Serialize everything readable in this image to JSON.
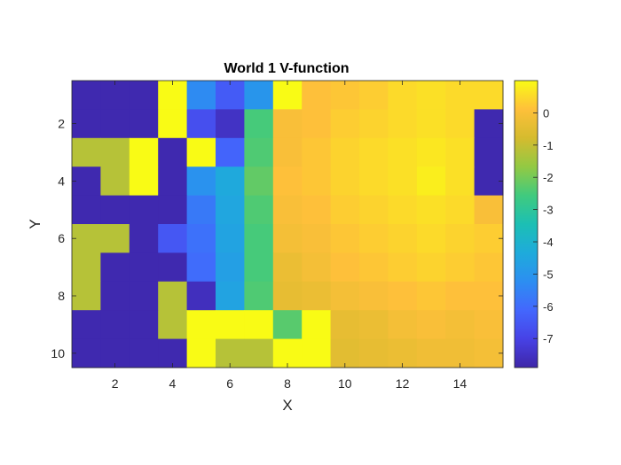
{
  "chart_data": {
    "type": "heatmap",
    "title": "World 1 V-function",
    "xlabel": "X",
    "ylabel": "Y",
    "x_ticks": [
      2,
      4,
      6,
      8,
      10,
      12,
      14
    ],
    "y_ticks": [
      2,
      4,
      6,
      8,
      10
    ],
    "x_range": [
      0.5,
      15.5
    ],
    "y_range": [
      0.5,
      10.5
    ],
    "y_direction": "reverse",
    "colormap": "parula",
    "color_limits": [
      -7.9,
      1.0
    ],
    "colorbar_ticks": [
      0,
      -1,
      -2,
      -3,
      -4,
      -5,
      -6,
      -7
    ],
    "colorbar_location": "right",
    "grid": false,
    "values": [
      [
        -7.8,
        -7.8,
        -7.8,
        1.0,
        -5.3,
        -6.4,
        -5.0,
        1.0,
        0.1,
        0.2,
        0.3,
        0.5,
        0.6,
        0.5,
        0.5
      ],
      [
        -7.8,
        -7.8,
        -7.8,
        1.0,
        -6.7,
        -7.5,
        -2.5,
        0.0,
        0.1,
        0.3,
        0.4,
        0.5,
        0.6,
        0.5,
        -7.8
      ],
      [
        -1.2,
        -1.2,
        1.0,
        -7.8,
        1.0,
        -6.2,
        -2.4,
        0.0,
        0.2,
        0.4,
        0.5,
        0.6,
        0.7,
        0.6,
        -7.8
      ],
      [
        -7.8,
        -1.2,
        1.0,
        -7.8,
        -5.1,
        -4.4,
        -2.2,
        0.1,
        0.2,
        0.4,
        0.5,
        0.6,
        0.8,
        0.6,
        -7.8
      ],
      [
        -7.8,
        -7.8,
        -7.8,
        -7.8,
        -5.7,
        -4.5,
        -2.4,
        0.0,
        0.1,
        0.3,
        0.4,
        0.5,
        0.6,
        0.5,
        0.0
      ],
      [
        -1.2,
        -1.2,
        -7.8,
        -6.5,
        -5.9,
        -4.6,
        -2.5,
        -0.1,
        0.0,
        0.2,
        0.3,
        0.4,
        0.5,
        0.4,
        0.3
      ],
      [
        -1.2,
        -7.8,
        -7.8,
        -7.8,
        -6.0,
        -4.7,
        -2.5,
        -0.3,
        -0.1,
        0.1,
        0.2,
        0.3,
        0.4,
        0.3,
        0.2
      ],
      [
        -1.2,
        -7.8,
        -7.8,
        -1.2,
        -7.6,
        -4.6,
        -2.4,
        -0.4,
        -0.3,
        -0.1,
        0.0,
        0.1,
        0.2,
        0.1,
        0.1
      ],
      [
        -7.8,
        -7.8,
        -7.8,
        -1.2,
        1.0,
        1.0,
        1.0,
        -2.3,
        1.0,
        -0.4,
        -0.3,
        -0.1,
        0.0,
        -0.1,
        0.0
      ],
      [
        -7.8,
        -7.8,
        -7.8,
        -7.8,
        1.0,
        -1.2,
        -1.2,
        1.0,
        1.0,
        -0.5,
        -0.4,
        -0.3,
        -0.2,
        -0.2,
        -0.1
      ]
    ]
  }
}
